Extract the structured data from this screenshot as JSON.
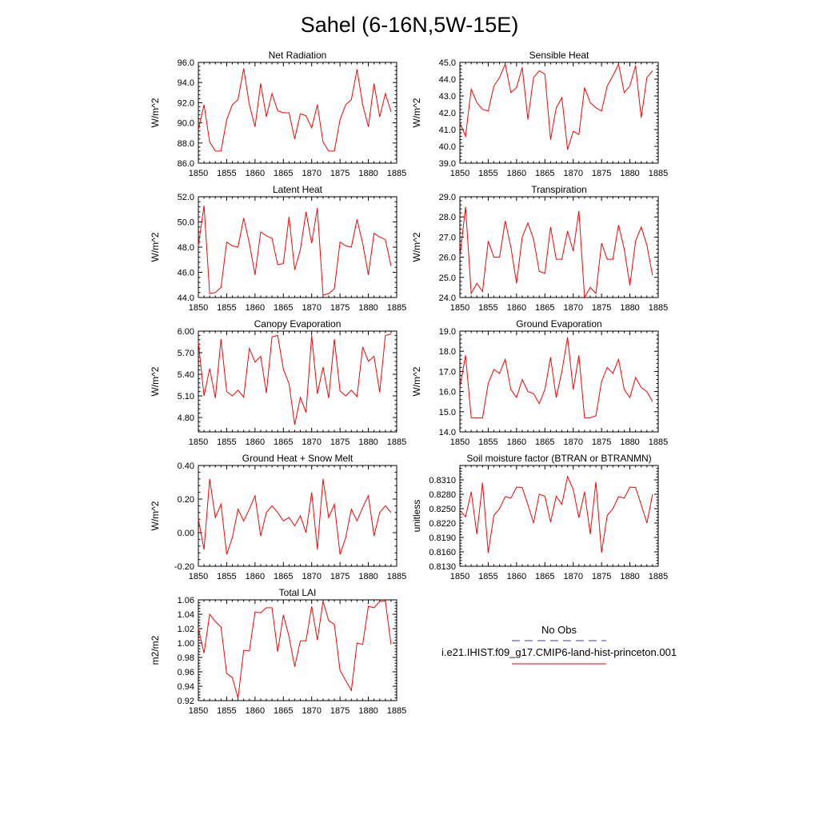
{
  "title": "Sahel (6-16N,5W-15E)",
  "legend": {
    "entries": [
      {
        "label": "No Obs",
        "color": "#3a3aa8",
        "dash": "dashed"
      },
      {
        "label": "i.e21.IHIST.f09_g17.CMIP6-land-hist-princeton.001",
        "color": "#ff0000",
        "dash": "solid"
      }
    ]
  },
  "chart_data": [
    {
      "type": "line",
      "title": "Net Radiation",
      "ylabel": "W/m^2",
      "xlim": [
        1850,
        1885
      ],
      "ylim": [
        86.0,
        96.0
      ],
      "xticks": [
        "1850",
        "1855",
        "1860",
        "1865",
        "1870",
        "1875",
        "1880",
        "1885"
      ],
      "yticks": [
        "86.0",
        "88.0",
        "90.0",
        "92.0",
        "94.0",
        "96.0"
      ],
      "series": [
        {
          "color": "#ff0000",
          "x": [
            1850,
            1851,
            1852,
            1853,
            1854,
            1855,
            1856,
            1857,
            1858,
            1859,
            1860,
            1861,
            1862,
            1863,
            1864,
            1865,
            1866,
            1867,
            1868,
            1869,
            1870,
            1871,
            1872,
            1873,
            1874,
            1875,
            1876,
            1877,
            1878,
            1879,
            1880,
            1881,
            1882,
            1883,
            1884
          ],
          "values": [
            89.3,
            91.8,
            88.1,
            87.2,
            87.2,
            90.3,
            91.8,
            92.3,
            95.4,
            91.8,
            89.6,
            93.9,
            90.6,
            92.9,
            91.2,
            91.0,
            91.0,
            88.4,
            90.9,
            90.7,
            89.5,
            91.8,
            88.1,
            87.2,
            87.2,
            90.3,
            91.8,
            92.3,
            95.3,
            91.8,
            89.6,
            93.9,
            90.6,
            92.9,
            91.1
          ]
        }
      ]
    },
    {
      "type": "line",
      "title": "Sensible Heat",
      "ylabel": "W/m^2",
      "xlim": [
        1850,
        1885
      ],
      "ylim": [
        39.0,
        45.0
      ],
      "xticks": [
        "1850",
        "1855",
        "1860",
        "1865",
        "1870",
        "1875",
        "1880",
        "1885"
      ],
      "yticks": [
        "39.0",
        "40.0",
        "41.0",
        "42.0",
        "43.0",
        "44.0",
        "45.0"
      ],
      "series": [
        {
          "color": "#ff0000",
          "x": [
            1850,
            1851,
            1852,
            1853,
            1854,
            1855,
            1856,
            1857,
            1858,
            1859,
            1860,
            1861,
            1862,
            1863,
            1864,
            1865,
            1866,
            1867,
            1868,
            1869,
            1870,
            1871,
            1872,
            1873,
            1874,
            1875,
            1876,
            1877,
            1878,
            1879,
            1880,
            1881,
            1882,
            1883,
            1884
          ],
          "values": [
            41.4,
            40.6,
            43.4,
            42.6,
            42.2,
            42.1,
            43.6,
            44.1,
            44.9,
            43.2,
            43.5,
            44.7,
            41.6,
            44.1,
            44.5,
            44.3,
            40.4,
            42.3,
            42.9,
            39.8,
            40.9,
            40.7,
            43.5,
            42.6,
            42.3,
            42.1,
            43.6,
            44.2,
            44.9,
            43.2,
            43.6,
            44.8,
            41.7,
            44.1,
            44.5
          ]
        }
      ]
    },
    {
      "type": "line",
      "title": "Latent Heat",
      "ylabel": "W/m^2",
      "xlim": [
        1850,
        1885
      ],
      "ylim": [
        44.0,
        52.0
      ],
      "xticks": [
        "1850",
        "1855",
        "1860",
        "1865",
        "1870",
        "1875",
        "1880",
        "1885"
      ],
      "yticks": [
        "44.0",
        "46.0",
        "48.0",
        "50.0",
        "52.0"
      ],
      "series": [
        {
          "color": "#ff0000",
          "x": [
            1850,
            1851,
            1852,
            1853,
            1854,
            1855,
            1856,
            1857,
            1858,
            1859,
            1860,
            1861,
            1862,
            1863,
            1864,
            1865,
            1866,
            1867,
            1868,
            1869,
            1870,
            1871,
            1872,
            1873,
            1874,
            1875,
            1876,
            1877,
            1878,
            1879,
            1880,
            1881,
            1882,
            1883,
            1884
          ],
          "values": [
            48.1,
            51.3,
            44.3,
            44.4,
            44.8,
            48.4,
            48.1,
            48.0,
            50.3,
            48.3,
            45.8,
            49.2,
            48.9,
            48.7,
            46.6,
            46.7,
            50.4,
            46.2,
            47.8,
            50.8,
            48.3,
            51.1,
            44.2,
            44.3,
            44.7,
            48.4,
            48.1,
            48.0,
            50.2,
            48.3,
            45.8,
            49.1,
            48.8,
            48.6,
            46.5
          ]
        }
      ]
    },
    {
      "type": "line",
      "title": "Transpiration",
      "ylabel": "W/m^2",
      "xlim": [
        1850,
        1885
      ],
      "ylim": [
        24.0,
        29.0
      ],
      "xticks": [
        "1850",
        "1855",
        "1860",
        "1865",
        "1870",
        "1875",
        "1880",
        "1885"
      ],
      "yticks": [
        "24.0",
        "25.0",
        "26.0",
        "27.0",
        "28.0",
        "29.0"
      ],
      "series": [
        {
          "color": "#ff0000",
          "x": [
            1850,
            1851,
            1852,
            1853,
            1854,
            1855,
            1856,
            1857,
            1858,
            1859,
            1860,
            1861,
            1862,
            1863,
            1864,
            1865,
            1866,
            1867,
            1868,
            1869,
            1870,
            1871,
            1872,
            1873,
            1874,
            1875,
            1876,
            1877,
            1878,
            1879,
            1880,
            1881,
            1882,
            1883,
            1884
          ],
          "values": [
            26.0,
            28.5,
            24.2,
            24.7,
            24.3,
            26.8,
            26.0,
            26.0,
            27.8,
            26.5,
            24.7,
            27.0,
            27.7,
            26.9,
            25.3,
            25.2,
            27.5,
            25.9,
            25.9,
            27.3,
            26.3,
            28.3,
            24.0,
            24.5,
            24.2,
            26.7,
            25.9,
            25.9,
            27.6,
            26.4,
            24.6,
            26.8,
            27.5,
            26.6,
            25.1
          ]
        }
      ]
    },
    {
      "type": "line",
      "title": "Canopy Evaporation",
      "ylabel": "W/m^2",
      "xlim": [
        1850,
        1885
      ],
      "ylim": [
        4.6,
        6.0
      ],
      "xticks": [
        "1850",
        "1855",
        "1860",
        "1865",
        "1870",
        "1875",
        "1880",
        "1885"
      ],
      "yticks": [
        "4.80",
        "5.10",
        "5.40",
        "5.70",
        "6.00"
      ],
      "ytickvalues": [
        4.8,
        5.1,
        5.4,
        5.7,
        6.0
      ],
      "series": [
        {
          "color": "#ff0000",
          "x": [
            1850,
            1851,
            1852,
            1853,
            1854,
            1855,
            1856,
            1857,
            1858,
            1859,
            1860,
            1861,
            1862,
            1863,
            1864,
            1865,
            1866,
            1867,
            1868,
            1869,
            1870,
            1871,
            1872,
            1873,
            1874,
            1875,
            1876,
            1877,
            1878,
            1879,
            1880,
            1881,
            1882,
            1883,
            1884
          ],
          "values": [
            5.85,
            5.1,
            5.48,
            5.07,
            5.89,
            5.16,
            5.1,
            5.18,
            5.08,
            5.76,
            5.57,
            5.65,
            5.14,
            5.92,
            5.94,
            5.47,
            5.27,
            4.7,
            5.08,
            4.87,
            5.94,
            5.13,
            5.5,
            5.07,
            5.89,
            5.17,
            5.1,
            5.18,
            5.09,
            5.78,
            5.58,
            5.65,
            5.15,
            5.94,
            5.96
          ]
        }
      ]
    },
    {
      "type": "line",
      "title": "Ground Evaporation",
      "ylabel": "W/m^2",
      "xlim": [
        1850,
        1885
      ],
      "ylim": [
        14.0,
        19.0
      ],
      "xticks": [
        "1850",
        "1855",
        "1860",
        "1865",
        "1870",
        "1875",
        "1880",
        "1885"
      ],
      "yticks": [
        "14.0",
        "15.0",
        "16.0",
        "17.0",
        "18.0",
        "19.0"
      ],
      "series": [
        {
          "color": "#ff0000",
          "x": [
            1850,
            1851,
            1852,
            1853,
            1854,
            1855,
            1856,
            1857,
            1858,
            1859,
            1860,
            1861,
            1862,
            1863,
            1864,
            1865,
            1866,
            1867,
            1868,
            1869,
            1870,
            1871,
            1872,
            1873,
            1874,
            1875,
            1876,
            1877,
            1878,
            1879,
            1880,
            1881,
            1882,
            1883,
            1884
          ],
          "values": [
            16.2,
            17.8,
            14.7,
            14.7,
            14.7,
            16.4,
            17.1,
            16.9,
            17.6,
            16.1,
            15.7,
            16.6,
            16.0,
            15.9,
            15.4,
            16.1,
            17.7,
            15.7,
            17.0,
            18.7,
            16.1,
            17.8,
            14.7,
            14.7,
            14.8,
            16.5,
            17.2,
            16.9,
            17.6,
            16.1,
            15.7,
            16.7,
            16.2,
            16.0,
            15.5
          ]
        }
      ]
    },
    {
      "type": "line",
      "title": "Ground Heat + Snow Melt",
      "ylabel": "W/m^2",
      "xlim": [
        1850,
        1885
      ],
      "ylim": [
        -0.2,
        0.4
      ],
      "xticks": [
        "1850",
        "1855",
        "1860",
        "1865",
        "1870",
        "1875",
        "1880",
        "1885"
      ],
      "yticks": [
        "-0.20",
        "0.00",
        "0.20",
        "0.40"
      ],
      "ytickvalues": [
        -0.2,
        0.0,
        0.2,
        0.4
      ],
      "series": [
        {
          "color": "#ff0000",
          "x": [
            1850,
            1851,
            1852,
            1853,
            1854,
            1855,
            1856,
            1857,
            1858,
            1859,
            1860,
            1861,
            1862,
            1863,
            1864,
            1865,
            1866,
            1867,
            1868,
            1869,
            1870,
            1871,
            1872,
            1873,
            1874,
            1875,
            1876,
            1877,
            1878,
            1879,
            1880,
            1881,
            1882,
            1883,
            1884
          ],
          "values": [
            0.08,
            -0.1,
            0.32,
            0.09,
            0.17,
            -0.13,
            -0.03,
            0.14,
            0.07,
            0.14,
            0.22,
            -0.02,
            0.12,
            0.16,
            0.12,
            0.07,
            0.09,
            0.04,
            0.1,
            0.0,
            0.24,
            -0.1,
            0.32,
            0.09,
            0.17,
            -0.13,
            -0.03,
            0.14,
            0.07,
            0.15,
            0.22,
            -0.02,
            0.12,
            0.16,
            0.12
          ]
        }
      ]
    },
    {
      "type": "line",
      "title": "Soil moisture factor (BTRAN or BTRANMN)",
      "ylabel": "unitless",
      "xlim": [
        1850,
        1885
      ],
      "ylim": [
        0.813,
        0.834
      ],
      "xticks": [
        "1850",
        "1855",
        "1860",
        "1865",
        "1870",
        "1875",
        "1880",
        "1885"
      ],
      "yticks": [
        "0.8130",
        "0.8160",
        "0.8190",
        "0.8220",
        "0.8250",
        "0.8280",
        "0.8310"
      ],
      "ytickvalues": [
        0.813,
        0.816,
        0.819,
        0.822,
        0.825,
        0.828,
        0.831
      ],
      "series": [
        {
          "color": "#ff0000",
          "x": [
            1850,
            1851,
            1852,
            1853,
            1854,
            1855,
            1856,
            1857,
            1858,
            1859,
            1860,
            1861,
            1862,
            1863,
            1864,
            1865,
            1866,
            1867,
            1868,
            1869,
            1870,
            1871,
            1872,
            1873,
            1874,
            1875,
            1876,
            1877,
            1878,
            1879,
            1880,
            1881,
            1882,
            1883,
            1884
          ],
          "values": [
            0.8247,
            0.8233,
            0.8285,
            0.8197,
            0.8304,
            0.8158,
            0.8236,
            0.825,
            0.8275,
            0.8272,
            0.8295,
            0.8294,
            0.8258,
            0.822,
            0.828,
            0.8276,
            0.8222,
            0.8276,
            0.8259,
            0.8317,
            0.829,
            0.8231,
            0.8285,
            0.8197,
            0.8306,
            0.8158,
            0.8236,
            0.825,
            0.8275,
            0.8272,
            0.8295,
            0.8294,
            0.8258,
            0.822,
            0.828
          ]
        }
      ]
    },
    {
      "type": "line",
      "title": "Total LAI",
      "ylabel": "m2/m2",
      "xlim": [
        1850,
        1885
      ],
      "ylim": [
        0.92,
        1.06
      ],
      "xticks": [
        "1850",
        "1855",
        "1860",
        "1865",
        "1870",
        "1875",
        "1880",
        "1885"
      ],
      "yticks": [
        "0.92",
        "0.94",
        "0.96",
        "0.98",
        "1.00",
        "1.02",
        "1.04",
        "1.06"
      ],
      "ytickvalues": [
        0.92,
        0.94,
        0.96,
        0.98,
        1.0,
        1.02,
        1.04,
        1.06
      ],
      "series": [
        {
          "color": "#ff0000",
          "x": [
            1850,
            1851,
            1852,
            1853,
            1854,
            1855,
            1856,
            1857,
            1858,
            1859,
            1860,
            1861,
            1862,
            1863,
            1864,
            1865,
            1866,
            1867,
            1868,
            1869,
            1870,
            1871,
            1872,
            1873,
            1874,
            1875,
            1876,
            1877,
            1878,
            1879,
            1880,
            1881,
            1882,
            1883,
            1884
          ],
          "values": [
            1.02,
            0.986,
            1.04,
            1.03,
            1.022,
            0.958,
            0.952,
            0.923,
            0.99,
            0.989,
            1.043,
            1.042,
            1.049,
            1.049,
            0.988,
            1.039,
            1.009,
            0.967,
            1.003,
            1.003,
            1.051,
            1.004,
            1.058,
            1.031,
            1.026,
            0.962,
            0.948,
            0.934,
            1.0,
            0.998,
            1.051,
            1.049,
            1.058,
            1.058,
            0.998
          ]
        }
      ]
    }
  ]
}
